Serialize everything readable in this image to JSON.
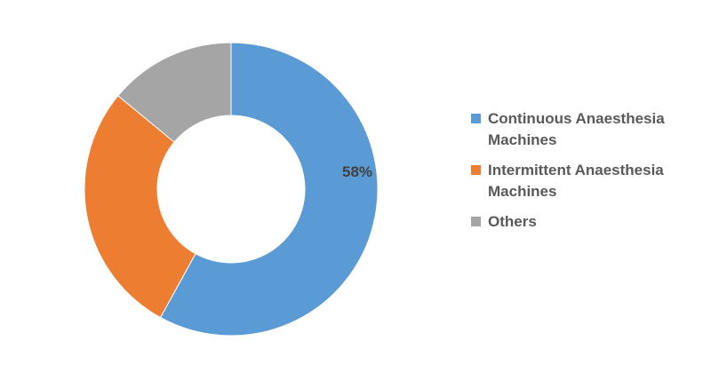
{
  "chart_data": {
    "type": "donut",
    "categories": [
      "Continuous Anaesthesia Machines",
      "Intermittent Anaesthesia Machines",
      "Others"
    ],
    "values": [
      58,
      28,
      14
    ],
    "value_labels": [
      "58%",
      null,
      null
    ],
    "colors": [
      "#5b9bd5",
      "#ed7d31",
      "#a5a5a5"
    ]
  }
}
